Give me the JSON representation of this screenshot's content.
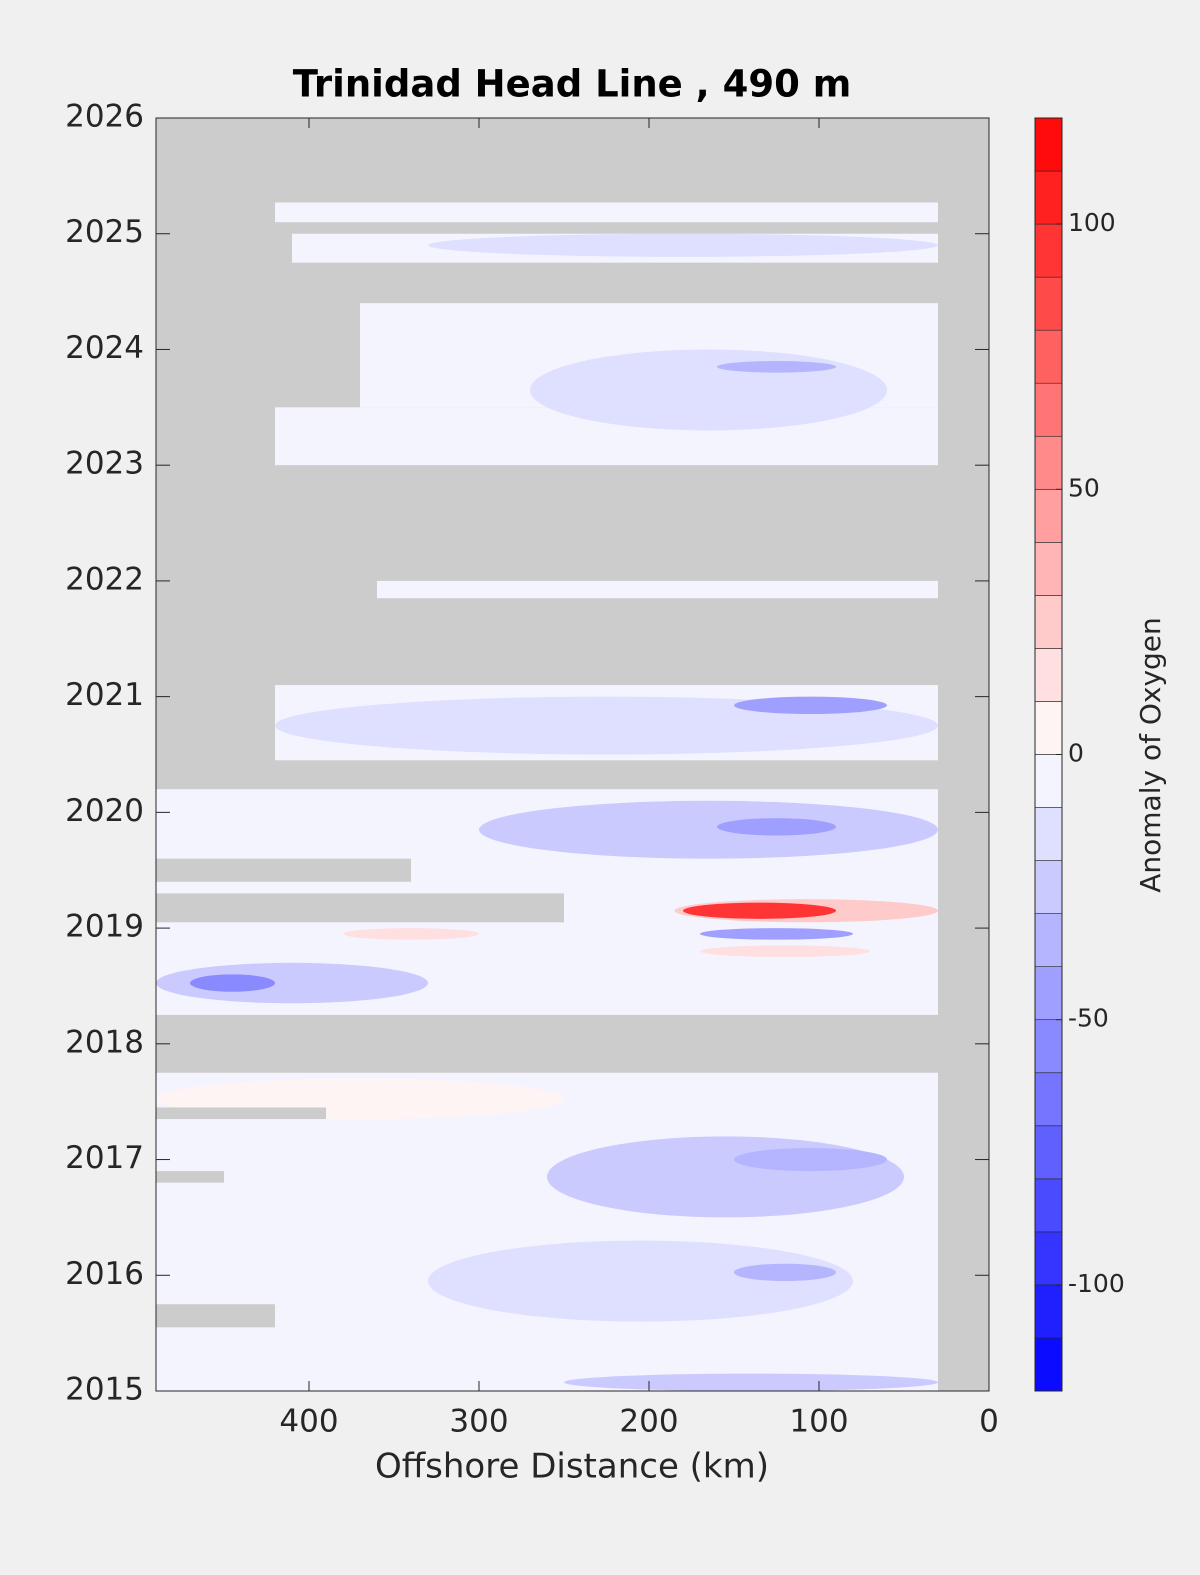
{
  "chart_data": {
    "type": "contour",
    "title": "Trinidad Head Line , 490 m",
    "xlabel": "Offshore Distance (km)",
    "colorbar_label": "Anomaly of Oxygen",
    "xlim": [
      490,
      0
    ],
    "ylim": [
      2015,
      2026
    ],
    "xticks": [
      400,
      300,
      200,
      100,
      0
    ],
    "yticks": [
      2015,
      2016,
      2017,
      2018,
      2019,
      2020,
      2021,
      2022,
      2023,
      2024,
      2025,
      2026
    ],
    "clim": [
      -120,
      120
    ],
    "levels": [
      -120,
      -110,
      -100,
      -90,
      -80,
      -70,
      -60,
      -50,
      -40,
      -30,
      -20,
      -10,
      0,
      10,
      20,
      30,
      40,
      50,
      60,
      70,
      80,
      90,
      100,
      110,
      120
    ],
    "cticks": [
      -100,
      -50,
      0,
      50,
      100
    ],
    "cmap": [
      "#0000ff",
      "#ffffff",
      "#ff0000"
    ],
    "nodata_color": "#cccccc",
    "coverage": [
      {
        "x": [
          490,
          30
        ],
        "y": [
          2015,
          2017.75
        ]
      },
      {
        "x": [
          490,
          30
        ],
        "y": [
          2018.25,
          2020.2
        ]
      },
      {
        "x": [
          420,
          30
        ],
        "y": [
          2020.45,
          2021.1
        ]
      },
      {
        "x": [
          360,
          30
        ],
        "y": [
          2021.85,
          2022.0
        ]
      },
      {
        "x": [
          420,
          30
        ],
        "y": [
          2023.0,
          2023.5
        ]
      },
      {
        "x": [
          370,
          30
        ],
        "y": [
          2023.5,
          2024.4
        ]
      },
      {
        "x": [
          410,
          30
        ],
        "y": [
          2024.75,
          2025.0
        ]
      },
      {
        "x": [
          420,
          30
        ],
        "y": [
          2025.1,
          2025.27
        ]
      }
    ],
    "gaps": [
      {
        "x": [
          490,
          250
        ],
        "y": [
          2019.05,
          2019.3
        ]
      },
      {
        "x": [
          490,
          340
        ],
        "y": [
          2019.4,
          2019.6
        ]
      },
      {
        "x": [
          490,
          420
        ],
        "y": [
          2015.55,
          2015.75
        ]
      },
      {
        "x": [
          490,
          390
        ],
        "y": [
          2017.35,
          2017.45
        ]
      },
      {
        "x": [
          490,
          450
        ],
        "y": [
          2016.8,
          2016.9
        ]
      }
    ],
    "patches": [
      {
        "x": [
          490,
          330
        ],
        "y": [
          2018.35,
          2018.7
        ],
        "value": -20
      },
      {
        "x": [
          470,
          420
        ],
        "y": [
          2018.45,
          2018.6
        ],
        "value": -50
      },
      {
        "x": [
          300,
          30
        ],
        "y": [
          2019.6,
          2020.1
        ],
        "value": -20
      },
      {
        "x": [
          160,
          90
        ],
        "y": [
          2019.8,
          2019.95
        ],
        "value": -40
      },
      {
        "x": [
          420,
          30
        ],
        "y": [
          2020.5,
          2021.0
        ],
        "value": -15
      },
      {
        "x": [
          150,
          60
        ],
        "y": [
          2020.85,
          2021.0
        ],
        "value": -40
      },
      {
        "x": [
          260,
          50
        ],
        "y": [
          2016.5,
          2017.2
        ],
        "value": -20
      },
      {
        "x": [
          150,
          60
        ],
        "y": [
          2016.9,
          2017.1
        ],
        "value": -35
      },
      {
        "x": [
          330,
          80
        ],
        "y": [
          2015.6,
          2016.3
        ],
        "value": -15
      },
      {
        "x": [
          150,
          90
        ],
        "y": [
          2015.95,
          2016.1
        ],
        "value": -30
      },
      {
        "x": [
          250,
          30
        ],
        "y": [
          2015.0,
          2015.15
        ],
        "value": -25
      },
      {
        "x": [
          490,
          250
        ],
        "y": [
          2017.35,
          2017.7
        ],
        "value": 10
      },
      {
        "x": [
          270,
          60
        ],
        "y": [
          2023.3,
          2024.0
        ],
        "value": -15
      },
      {
        "x": [
          160,
          90
        ],
        "y": [
          2023.8,
          2023.9
        ],
        "value": -30
      },
      {
        "x": [
          330,
          30
        ],
        "y": [
          2024.8,
          2025.0
        ],
        "value": -15
      },
      {
        "x": [
          380,
          300
        ],
        "y": [
          2018.9,
          2019.0
        ],
        "value": 12
      },
      {
        "x": [
          185,
          30
        ],
        "y": [
          2019.05,
          2019.25
        ],
        "value": 30
      },
      {
        "x": [
          180,
          90
        ],
        "y": [
          2019.08,
          2019.22
        ],
        "value": 100
      },
      {
        "x": [
          170,
          80
        ],
        "y": [
          2018.9,
          2019.0
        ],
        "value": -40
      },
      {
        "x": [
          170,
          70
        ],
        "y": [
          2018.75,
          2018.85
        ],
        "value": 20
      }
    ]
  }
}
